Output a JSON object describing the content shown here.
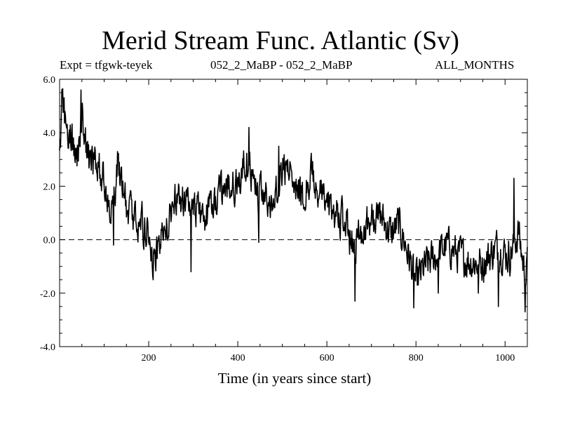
{
  "chart_data": {
    "type": "line",
    "title": "Merid Stream Func. Atlantic (Sv)",
    "subtitle_left": "Expt = tfgwk-teyek",
    "subtitle_center": "052_2_MaBP - 052_2_MaBP",
    "subtitle_right": "ALL_MONTHS",
    "xlabel": "Time (in years since start)",
    "ylabel": "",
    "xlim": [
      0,
      1050
    ],
    "ylim": [
      -4.0,
      6.0
    ],
    "xticks": [
      200,
      400,
      600,
      800,
      1000
    ],
    "xtick_labels": [
      "200",
      "400",
      "600",
      "800",
      "1000"
    ],
    "yticks": [
      -4.0,
      -2.0,
      0.0,
      2.0,
      4.0,
      6.0
    ],
    "ytick_labels": [
      "-4.0",
      "-2.0",
      "0.0",
      "2.0",
      "4.0",
      "6.0"
    ],
    "reference_line": 0.0,
    "grid": false,
    "series": [
      {
        "name": "Merid Stream Func. Atlantic",
        "style": "solid",
        "trend": [
          [
            0,
            2.8
          ],
          [
            5,
            5.2
          ],
          [
            20,
            4.0
          ],
          [
            40,
            3.3
          ],
          [
            50,
            4.6
          ],
          [
            65,
            3.0
          ],
          [
            85,
            2.8
          ],
          [
            100,
            2.2
          ],
          [
            115,
            1.0
          ],
          [
            130,
            2.6
          ],
          [
            150,
            1.3
          ],
          [
            175,
            0.8
          ],
          [
            200,
            0.2
          ],
          [
            210,
            -0.8
          ],
          [
            240,
            0.4
          ],
          [
            265,
            1.6
          ],
          [
            300,
            1.2
          ],
          [
            330,
            0.9
          ],
          [
            360,
            1.6
          ],
          [
            380,
            2.0
          ],
          [
            400,
            2.0
          ],
          [
            420,
            3.1
          ],
          [
            445,
            1.8
          ],
          [
            465,
            1.3
          ],
          [
            480,
            1.2
          ],
          [
            495,
            2.7
          ],
          [
            520,
            2.6
          ],
          [
            545,
            1.6
          ],
          [
            565,
            2.4
          ],
          [
            580,
            1.9
          ],
          [
            600,
            1.3
          ],
          [
            620,
            1.0
          ],
          [
            640,
            0.6
          ],
          [
            660,
            -0.3
          ],
          [
            680,
            0.5
          ],
          [
            705,
            0.7
          ],
          [
            720,
            0.9
          ],
          [
            745,
            0.2
          ],
          [
            760,
            0.6
          ],
          [
            775,
            -0.1
          ],
          [
            800,
            -1.6
          ],
          [
            820,
            -1.0
          ],
          [
            845,
            -0.6
          ],
          [
            870,
            -0.2
          ],
          [
            890,
            -0.5
          ],
          [
            920,
            -0.8
          ],
          [
            950,
            -0.9
          ],
          [
            980,
            -0.3
          ],
          [
            1010,
            -0.6
          ],
          [
            1030,
            0.3
          ],
          [
            1045,
            -1.4
          ],
          [
            1050,
            -1.0
          ]
        ],
        "spikes": [
          [
            7,
            5.65
          ],
          [
            12,
            4.8
          ],
          [
            48,
            5.6
          ],
          [
            121,
            -0.2
          ],
          [
            130,
            3.3
          ],
          [
            210,
            -1.5
          ],
          [
            295,
            -1.2
          ],
          [
            425,
            4.2
          ],
          [
            447,
            -0.1
          ],
          [
            492,
            3.5
          ],
          [
            663,
            -2.3
          ],
          [
            795,
            -2.55
          ],
          [
            850,
            -2.0
          ],
          [
            940,
            -2.0
          ],
          [
            985,
            -2.5
          ],
          [
            1020,
            2.3
          ],
          [
            1045,
            -2.7
          ]
        ],
        "noise_amplitude": 0.6,
        "samples": 1050
      }
    ]
  }
}
